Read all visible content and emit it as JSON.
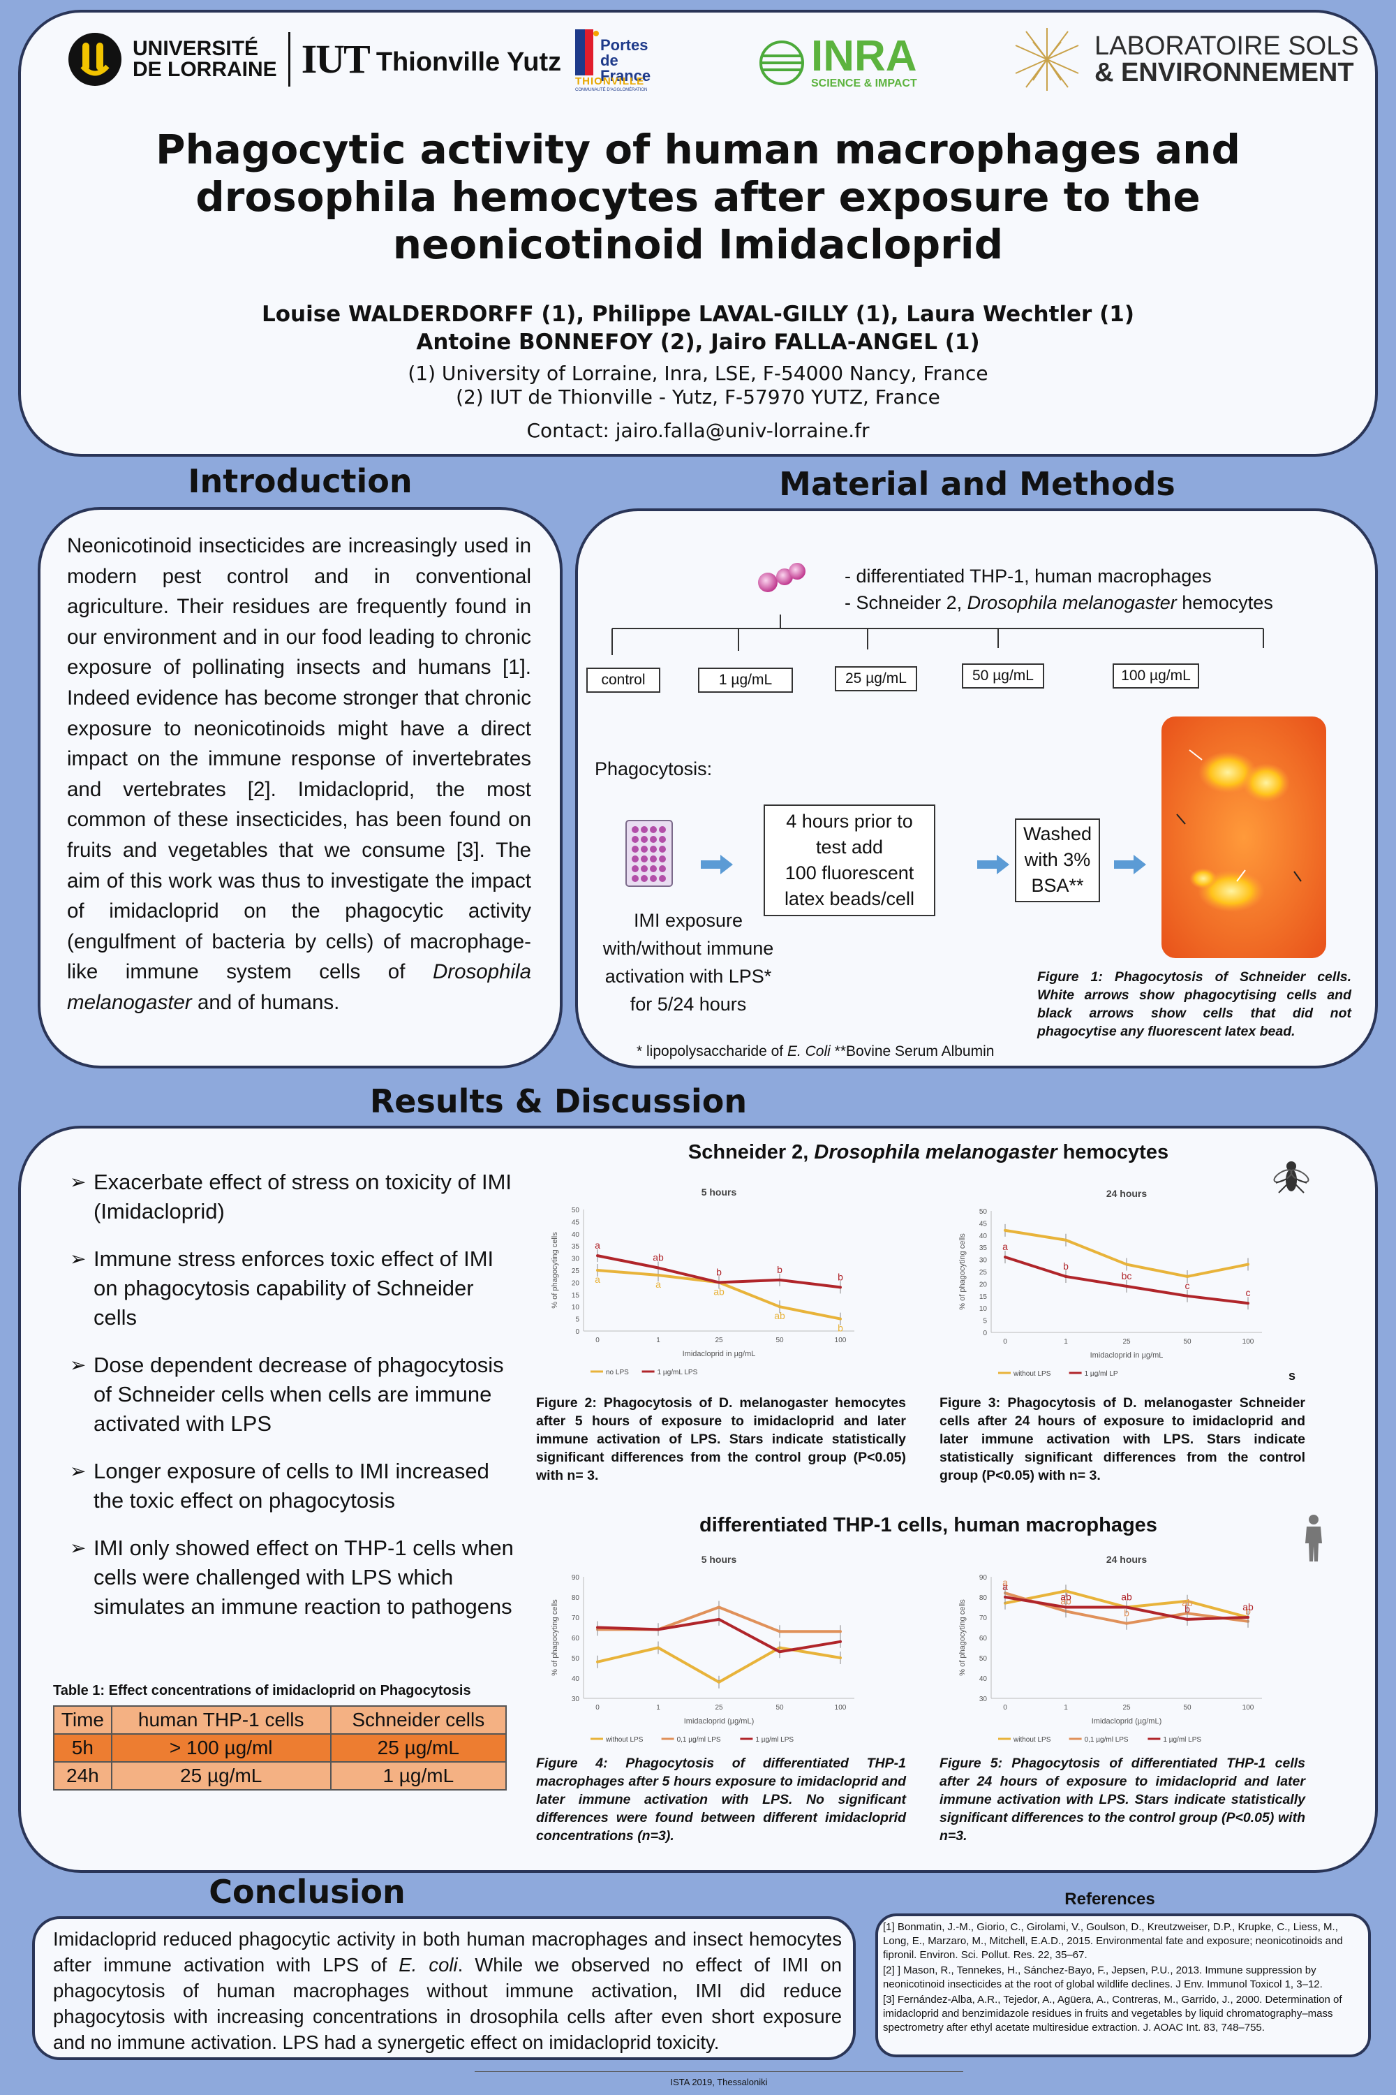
{
  "header": {
    "logos": {
      "ul_line1": "UNIVERSITÉ",
      "ul_line2": "DE LORRAINE",
      "iut": "IUT",
      "iut_city": "Thionville Yutz",
      "portes_line1": "Portes",
      "portes_line2": "de France",
      "portes_line3": "THIONVILLE",
      "portes_small": "COMMUNAUTÉ D'AGGLOMÉRATION",
      "inra": "INRA",
      "inra_sub": "SCIENCE & IMPACT",
      "lse_line1": "LABORATOIRE SOLS",
      "lse_line2": "& ENVIRONNEMENT"
    },
    "title_line1": "Phagocytic activity of human macrophages and",
    "title_line2": "drosophila hemocytes after exposure to the",
    "title_line3": "neonicotinoid Imidacloprid",
    "authors_line1": "Louise WALDERDORFF (1), Philippe LAVAL-GILLY (1), Laura Wechtler (1)",
    "authors_line2": "Antoine BONNEFOY (2), Jairo FALLA-ANGEL (1)",
    "affil_line1": "(1) University of Lorraine, Inra, LSE, F-54000 Nancy, France",
    "affil_line2": "(2) IUT de Thionville - Yutz, F-57970 YUTZ, France",
    "contact": "Contact: jairo.falla@univ-lorraine.fr"
  },
  "introduction": {
    "title": "Introduction",
    "text_before": "Neonicotinoid insecticides are increasingly used in modern pest control and in conventional agriculture. Their residues are frequently found in our environment and in our food leading to chronic exposure of pollinating insects and humans [1]. Indeed evidence has become stronger that chronic exposure to neonicotinoids might have a direct impact on the immune response of invertebrates and vertebrates [2]. Imidacloprid, the most common of these insecticides, has been found on fruits and vegetables that we consume [3]. The aim of this work was thus to investigate the impact of imidacloprid on the phagocytic activity (engulfment of bacteria by cells) of macrophage-like immune system cells of",
    "text_italic": "Drosophila melanogaster",
    "text_after": " and of humans."
  },
  "methods": {
    "title": "Material and Methods",
    "cells_line1": "- differentiated THP-1, human macrophages",
    "cells_line2_a": "- Schneider 2, ",
    "cells_line2_b": "Drosophila melanogaster",
    "cells_line2_c": " hemocytes",
    "concentrations": [
      "control",
      "1 µg/mL",
      "25 µg/mL",
      "50 µg/mL",
      "100 µg/mL"
    ],
    "phagocytosis_label": "Phagocytosis:",
    "step1_line1": "IMI exposure",
    "step1_line2": "with/without immune",
    "step1_line3": "activation with LPS*",
    "step1_line4": "for 5/24 hours",
    "step2_line1": "4 hours prior to",
    "step2_line2": "test add",
    "step2_line3": "100 fluorescent",
    "step2_line4": "latex beads/cell",
    "step3_line1": "Washed",
    "step3_line2": "with 3%",
    "step3_line3": "BSA**",
    "figure1_caption": "Figure 1: Phagocytosis of Schneider cells. White arrows show phagocytising cells and black arrows show cells that did not phagocytise any fluorescent latex bead.",
    "footnote_a": "* lipopolysaccharide of ",
    "footnote_b": "E. Coli",
    "footnote_c": "  **Bovine Serum Albumin"
  },
  "results": {
    "title": "Results & Discussion",
    "bullets": [
      "Exacerbate effect of stress on toxicity of IMI (Imidacloprid)",
      "Immune stress enforces toxic effect of IMI on phagocytosis capability of Schneider cells",
      "Dose dependent decrease of phagocytosis of Schneider cells when cells are immune activated with LPS",
      "Longer exposure of cells to IMI increased the toxic effect on phagocytosis",
      "IMI only showed effect on THP-1 cells when cells were challenged with LPS which simulates an immune reaction to pathogens"
    ],
    "schneider_heading_a": "Schneider 2, ",
    "schneider_heading_b": "Drosophila melanogaster",
    "schneider_heading_c": " hemocytes",
    "thp_heading": "differentiated THP-1 cells, human macrophages",
    "stray_mark": "s",
    "fig2_caption": "Figure 2: Phagocytosis of D. melanogaster hemocytes after 5 hours of exposure to imidacloprid and later immune activation of LPS. Stars indicate statistically significant differences from the control group (P<0.05) with n= 3.",
    "fig3_caption": "Figure 3: Phagocytosis of D. melanogaster Schneider cells after 24 hours of exposure to imidacloprid and later immune activation with LPS. Stars indicate statistically significant differences from the control group (P<0.05) with n= 3.",
    "fig4_caption": "Figure 4: Phagocytosis of differentiated THP-1 macrophages after 5 hours exposure to imidacloprid and later immune activation with LPS. No significant differences were found between different imidacloprid concentrations (n=3).",
    "fig5_caption": "Figure 5: Phagocytosis of differentiated THP-1 cells after 24 hours of exposure to imidacloprid and later immune activation with LPS. Stars indicate statistically significant differences to the control group (P<0.05) with n=3.",
    "table": {
      "caption": "Table 1: Effect concentrations of imidacloprid on Phagocytosis",
      "headers": [
        "Time",
        "human THP-1 cells",
        "Schneider cells"
      ],
      "rows": [
        [
          "5h",
          "> 100 µg/ml",
          "25 µg/mL"
        ],
        [
          "24h",
          "25 µg/mL",
          "1 µg/mL"
        ]
      ]
    }
  },
  "chart_data": [
    {
      "type": "line",
      "title": "5 hours",
      "categories": [
        "0",
        "1",
        "25",
        "50",
        "100"
      ],
      "xlabel": "Imidacloprid in µg/mL",
      "ylabel": "% of phagocyting cells",
      "ylim": [
        0,
        50
      ],
      "yticks": [
        0,
        5,
        10,
        15,
        20,
        25,
        30,
        35,
        40,
        45,
        50
      ],
      "series": [
        {
          "name": "no LPS",
          "color": "#e8b33a",
          "values": [
            25,
            23,
            20,
            10,
            5
          ],
          "labels": [
            "a",
            "a",
            "ab",
            "ab",
            "b"
          ]
        },
        {
          "name": "1 µg/mL LPS",
          "color": "#b0252a",
          "values": [
            31,
            26,
            20,
            21,
            18
          ],
          "labels": [
            "a",
            "ab",
            "b",
            "b",
            "b"
          ]
        }
      ],
      "legend": "bottom"
    },
    {
      "type": "line",
      "title": "24 hours",
      "categories": [
        "0",
        "1",
        "25",
        "50",
        "100"
      ],
      "xlabel": "Imidacloprid in µg/mL",
      "ylabel": "% of phagocyting cells",
      "ylim": [
        0,
        50
      ],
      "yticks": [
        0,
        5,
        10,
        15,
        20,
        25,
        30,
        35,
        40,
        45,
        50
      ],
      "series": [
        {
          "name": "without LPS",
          "color": "#e8b33a",
          "values": [
            42,
            38,
            28,
            23,
            28
          ],
          "labels": []
        },
        {
          "name": "1 µg/ml LP",
          "color": "#b0252a",
          "values": [
            31,
            23,
            19,
            15,
            12
          ],
          "labels": [
            "a",
            "b",
            "bc",
            "c",
            "c"
          ]
        }
      ],
      "legend": "bottom"
    },
    {
      "type": "line",
      "title": "5 hours",
      "categories": [
        "0",
        "1",
        "25",
        "50",
        "100"
      ],
      "xlabel": "Imidacloprid (µg/mL)",
      "ylabel": "% of phagocyting cells",
      "ylim": [
        30,
        90
      ],
      "yticks": [
        30,
        40,
        50,
        60,
        70,
        80,
        90
      ],
      "series": [
        {
          "name": "without LPS",
          "color": "#e8b33a",
          "values": [
            48,
            55,
            38,
            55,
            50
          ],
          "labels": []
        },
        {
          "name": "0,1 µg/ml LPS",
          "color": "#e0915a",
          "values": [
            64,
            64,
            75,
            63,
            63
          ],
          "labels": []
        },
        {
          "name": "1 µg/ml LPS",
          "color": "#b0252a",
          "values": [
            65,
            64,
            69,
            53,
            58
          ],
          "labels": []
        }
      ],
      "legend": "bottom"
    },
    {
      "type": "line",
      "title": "24 hours",
      "categories": [
        "0",
        "1",
        "25",
        "50",
        "100"
      ],
      "xlabel": "Imidacloprid (µg/mL)",
      "ylabel": "% of phagocyting cells",
      "ylim": [
        30,
        90
      ],
      "yticks": [
        30,
        40,
        50,
        60,
        70,
        80,
        90
      ],
      "series": [
        {
          "name": "without LPS",
          "color": "#e8b33a",
          "values": [
            77,
            83,
            75,
            78,
            70
          ],
          "labels": []
        },
        {
          "name": "0,1 µg/ml LPS",
          "color": "#e0915a",
          "values": [
            82,
            73,
            67,
            72,
            68
          ],
          "labels": [
            "a",
            "ab",
            "b",
            "ab",
            "b"
          ]
        },
        {
          "name": "1 µg/ml LPS",
          "color": "#b0252a",
          "values": [
            80,
            75,
            75,
            69,
            70
          ],
          "labels": [
            "a",
            "ab",
            "ab",
            "b",
            "ab"
          ]
        }
      ],
      "legend": "bottom"
    }
  ],
  "conclusion": {
    "title": "Conclusion",
    "text_a": "Imidacloprid reduced phagocytic activity in both human macrophages and insect hemocytes after immune activation with LPS of ",
    "text_b": "E. coli",
    "text_c": ". While we observed no effect of IMI on phagocytosis of human macrophages without immune activation, IMI did reduce phagocytosis with increasing concentrations in drosophila cells after even short exposure and no immune activation. LPS had a synergetic effect on imidacloprid toxicity."
  },
  "references": {
    "title": "References",
    "items": [
      "[1] Bonmatin, J.-M., Giorio, C., Girolami, V., Goulson, D., Kreutzweiser, D.P., Krupke, C., Liess, M., Long, E., Marzaro, M., Mitchell, E.A.D., 2015. Environmental fate and exposure; neonicotinoids and fipronil. Environ. Sci. Pollut. Res. 22, 35–67.",
      "[2] ] Mason, R., Tennekes, H., Sánchez-Bayo, F., Jepsen, P.U., 2013. Immune suppression by neonicotinoid insecticides at the root of global wildlife declines. J Env. Immunol Toxicol 1, 3–12.",
      "[3] Fernández-Alba, A.R., Tejedor, A., Agüera, A., Contreras, M., Garrido, J., 2000. Determination of imidacloprid and benzimidazole residues in fruits and vegetables by liquid chromatography–mass spectrometry after ethyl acetate multiresidue extraction. J. AOAC Int. 83, 748–755."
    ]
  },
  "footer": "ISTA 2019, Thessaloniki"
}
